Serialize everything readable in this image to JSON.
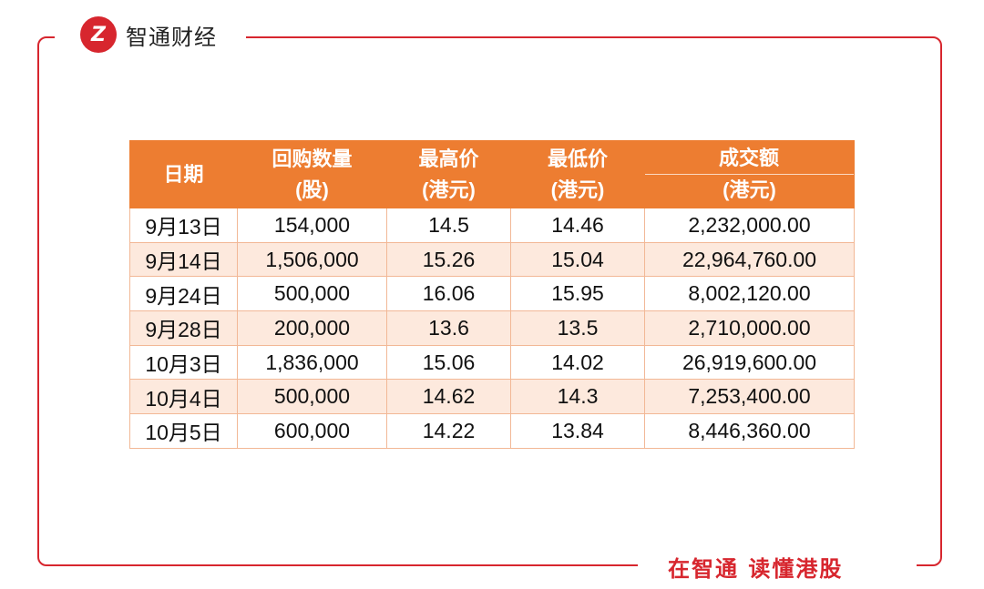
{
  "brand": {
    "logo_mark": "Z",
    "name": "智通财经",
    "slogan": "在智通  读懂港股"
  },
  "colors": {
    "accent": "#d7262e",
    "header": "#ed7d31",
    "alt_row": "#fde9dd"
  },
  "table": {
    "headers": [
      [
        "日期",
        ""
      ],
      [
        "回购数量",
        "(股)"
      ],
      [
        "最高价",
        "(港元)"
      ],
      [
        "最低价",
        "(港元)"
      ],
      [
        "成交额",
        "(港元)"
      ]
    ],
    "rows": [
      [
        "9月13日",
        "154,000",
        "14.5",
        "14.46",
        "2,232,000.00"
      ],
      [
        "9月14日",
        "1,506,000",
        "15.26",
        "15.04",
        "22,964,760.00"
      ],
      [
        "9月24日",
        "500,000",
        "16.06",
        "15.95",
        "8,002,120.00"
      ],
      [
        "9月28日",
        "200,000",
        "13.6",
        "13.5",
        "2,710,000.00"
      ],
      [
        "10月3日",
        "1,836,000",
        "15.06",
        "14.02",
        "26,919,600.00"
      ],
      [
        "10月4日",
        "500,000",
        "14.62",
        "14.3",
        "7,253,400.00"
      ],
      [
        "10月5日",
        "600,000",
        "14.22",
        "13.84",
        "8,446,360.00"
      ]
    ]
  }
}
